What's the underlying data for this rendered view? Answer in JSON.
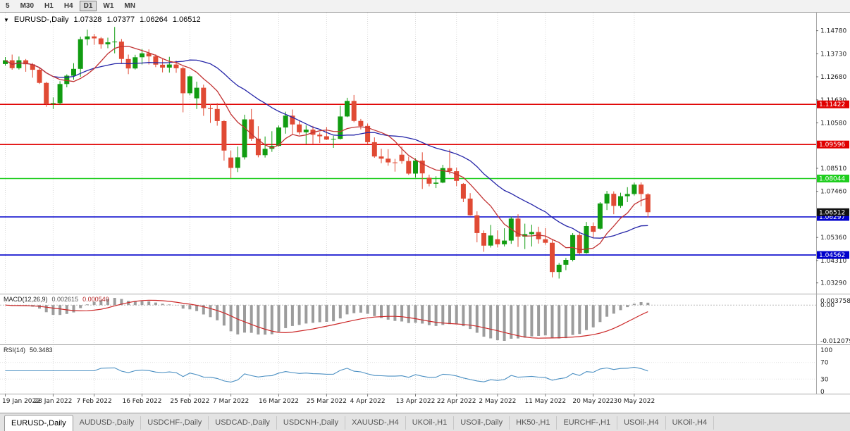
{
  "colors": {
    "up": "#119c11",
    "down": "#e04a34",
    "ma_fast": "#c23333",
    "ma_slow": "#2525a8",
    "macd_hist": "#9c9c9c",
    "macd_signal": "#cc2929",
    "rsi_line": "#4a8fc2",
    "level_red": "#e00000",
    "level_green": "#1fce1f",
    "level_blue": "#0000cc",
    "price_label_bg": "#111111",
    "grid": "#d9d9d9"
  },
  "toolbar": {
    "timeframes": [
      {
        "label": "5",
        "active": false
      },
      {
        "label": "M30",
        "active": false
      },
      {
        "label": "H1",
        "active": false
      },
      {
        "label": "H4",
        "active": false
      },
      {
        "label": "D1",
        "active": true
      },
      {
        "label": "W1",
        "active": false
      },
      {
        "label": "MN",
        "active": false
      }
    ]
  },
  "chart": {
    "dropdown_glyph": "▼",
    "symbol_label": "EURUSD-,Daily",
    "open": "1.07328",
    "high": "1.07377",
    "low": "1.06264",
    "close": "1.06512"
  },
  "price_axis": {
    "labels": [
      "1.14780",
      "1.13730",
      "1.12680",
      "1.11630",
      "1.10580",
      "1.08510",
      "1.07460",
      "1.05360",
      "1.04310",
      "1.03290"
    ]
  },
  "levels": [
    {
      "price": 1.11422,
      "label": "1.11422",
      "type": "red"
    },
    {
      "price": 1.09596,
      "label": "1.09596",
      "type": "red"
    },
    {
      "price": 1.08044,
      "label": "1.08044",
      "type": "green"
    },
    {
      "price": 1.06297,
      "label": "1.06297",
      "type": "blue"
    },
    {
      "price": 1.04562,
      "label": "1.04562",
      "type": "blue"
    }
  ],
  "current_price": {
    "price": 1.06512,
    "label": "1.06512"
  },
  "macd_panel": {
    "name": "MACD(12,26,9)",
    "value_main": "0.002615",
    "value_signal": "0.000540",
    "axis_top": "0.0037584",
    "axis_zero": "0.00",
    "axis_bottom": "-0.0120796"
  },
  "rsi_panel": {
    "name": "RSI(14)",
    "value": "50.3483",
    "axis": [
      "100",
      "70",
      "30",
      "0"
    ]
  },
  "x_ticks": [
    "19 Jan 2022",
    "28 Jan 2022",
    "7 Feb 2022",
    "16 Feb 2022",
    "25 Feb 2022",
    "7 Mar 2022",
    "16 Mar 2022",
    "25 Mar 2022",
    "4 Apr 2022",
    "13 Apr 2022",
    "22 Apr 2022",
    "2 May 2022",
    "11 May 2022",
    "20 May 2022",
    "30 May 2022"
  ],
  "tabs": [
    {
      "label": "EURUSD-,Daily",
      "active": true
    },
    {
      "label": "AUDUSD-,Daily",
      "active": false
    },
    {
      "label": "USDCHF-,Daily",
      "active": false
    },
    {
      "label": "USDCAD-,Daily",
      "active": false
    },
    {
      "label": "USDCNH-,Daily",
      "active": false
    },
    {
      "label": "XAUUSD-,H4",
      "active": false
    },
    {
      "label": "UKOil-,H1",
      "active": false
    },
    {
      "label": "USOil-,Daily",
      "active": false
    },
    {
      "label": "HK50-,H1",
      "active": false
    },
    {
      "label": "EURCHF-,H1",
      "active": false
    },
    {
      "label": "USOil-,H4",
      "active": false
    },
    {
      "label": "UKOil-,H4",
      "active": false
    }
  ],
  "chart_data": {
    "type": "candlestick",
    "title": "EURUSD-,Daily",
    "symbol": "EURUSD",
    "timeframe": "Daily",
    "ylim": [
      1.028,
      1.156
    ],
    "overlays": [
      {
        "name": "ma-fast",
        "period": 8
      },
      {
        "name": "ma-slow",
        "period": 20
      }
    ],
    "indicators": [
      "MACD(12,26,9)",
      "RSI(14)"
    ],
    "dates": [
      "19 Jan 2022",
      "20 Jan 2022",
      "21 Jan 2022",
      "24 Jan 2022",
      "25 Jan 2022",
      "26 Jan 2022",
      "27 Jan 2022",
      "28 Jan 2022",
      "31 Jan 2022",
      "1 Feb 2022",
      "2 Feb 2022",
      "3 Feb 2022",
      "4 Feb 2022",
      "7 Feb 2022",
      "8 Feb 2022",
      "9 Feb 2022",
      "10 Feb 2022",
      "11 Feb 2022",
      "14 Feb 2022",
      "15 Feb 2022",
      "16 Feb 2022",
      "17 Feb 2022",
      "18 Feb 2022",
      "21 Feb 2022",
      "22 Feb 2022",
      "23 Feb 2022",
      "24 Feb 2022",
      "25 Feb 2022",
      "28 Feb 2022",
      "1 Mar 2022",
      "2 Mar 2022",
      "3 Mar 2022",
      "4 Mar 2022",
      "7 Mar 2022",
      "8 Mar 2022",
      "9 Mar 2022",
      "10 Mar 2022",
      "11 Mar 2022",
      "14 Mar 2022",
      "15 Mar 2022",
      "16 Mar 2022",
      "17 Mar 2022",
      "18 Mar 2022",
      "21 Mar 2022",
      "22 Mar 2022",
      "23 Mar 2022",
      "24 Mar 2022",
      "25 Mar 2022",
      "28 Mar 2022",
      "29 Mar 2022",
      "30 Mar 2022",
      "31 Mar 2022",
      "1 Apr 2022",
      "4 Apr 2022",
      "5 Apr 2022",
      "6 Apr 2022",
      "7 Apr 2022",
      "8 Apr 2022",
      "11 Apr 2022",
      "12 Apr 2022",
      "13 Apr 2022",
      "14 Apr 2022",
      "18 Apr 2022",
      "19 Apr 2022",
      "20 Apr 2022",
      "21 Apr 2022",
      "22 Apr 2022",
      "25 Apr 2022",
      "26 Apr 2022",
      "27 Apr 2022",
      "28 Apr 2022",
      "29 Apr 2022",
      "2 May 2022",
      "3 May 2022",
      "4 May 2022",
      "5 May 2022",
      "6 May 2022",
      "9 May 2022",
      "10 May 2022",
      "11 May 2022",
      "12 May 2022",
      "13 May 2022",
      "16 May 2022",
      "17 May 2022",
      "18 May 2022",
      "19 May 2022",
      "20 May 2022",
      "23 May 2022",
      "24 May 2022",
      "25 May 2022",
      "26 May 2022",
      "27 May 2022",
      "30 May 2022",
      "31 May 2022",
      "1 Jun 2022"
    ],
    "ohlc": [
      [
        1.1326,
        1.1358,
        1.1319,
        1.1343
      ],
      [
        1.1343,
        1.1369,
        1.13,
        1.1307
      ],
      [
        1.1307,
        1.136,
        1.1301,
        1.1343
      ],
      [
        1.1343,
        1.1349,
        1.1291,
        1.1325
      ],
      [
        1.1325,
        1.1331,
        1.1264,
        1.13
      ],
      [
        1.13,
        1.131,
        1.1235,
        1.124
      ],
      [
        1.124,
        1.1245,
        1.1131,
        1.1145
      ],
      [
        1.1145,
        1.1174,
        1.1121,
        1.1148
      ],
      [
        1.1148,
        1.1248,
        1.114,
        1.1235
      ],
      [
        1.1235,
        1.1279,
        1.122,
        1.1273
      ],
      [
        1.1273,
        1.133,
        1.1255,
        1.1304
      ],
      [
        1.1304,
        1.1451,
        1.1268,
        1.1439
      ],
      [
        1.1439,
        1.1483,
        1.1411,
        1.1452
      ],
      [
        1.1452,
        1.1463,
        1.1414,
        1.1443
      ],
      [
        1.1443,
        1.1449,
        1.1396,
        1.1416
      ],
      [
        1.1416,
        1.1446,
        1.1398,
        1.1425
      ],
      [
        1.1425,
        1.1495,
        1.1375,
        1.1428
      ],
      [
        1.1428,
        1.144,
        1.133,
        1.1349
      ],
      [
        1.1349,
        1.1369,
        1.128,
        1.1306
      ],
      [
        1.1306,
        1.1368,
        1.1301,
        1.1357
      ],
      [
        1.1357,
        1.1395,
        1.1324,
        1.1375
      ],
      [
        1.1375,
        1.1393,
        1.1324,
        1.1361
      ],
      [
        1.1361,
        1.137,
        1.1312,
        1.1323
      ],
      [
        1.1323,
        1.1349,
        1.1288,
        1.131
      ],
      [
        1.131,
        1.1359,
        1.1287,
        1.1324
      ],
      [
        1.1324,
        1.1342,
        1.1286,
        1.1307
      ],
      [
        1.1307,
        1.1315,
        1.1106,
        1.1193
      ],
      [
        1.1193,
        1.1274,
        1.1184,
        1.127
      ],
      [
        1.117,
        1.1246,
        1.1121,
        1.1218
      ],
      [
        1.1218,
        1.1232,
        1.109,
        1.1125
      ],
      [
        1.1125,
        1.1145,
        1.1058,
        1.1121
      ],
      [
        1.1121,
        1.1148,
        1.1045,
        1.1066
      ],
      [
        1.1066,
        1.107,
        1.0886,
        1.0932
      ],
      [
        1.09,
        1.0932,
        1.0806,
        1.0853
      ],
      [
        1.0853,
        1.095,
        1.0834,
        1.0901
      ],
      [
        1.0901,
        1.1095,
        1.0891,
        1.1074
      ],
      [
        1.1074,
        1.1121,
        1.0976,
        1.0986
      ],
      [
        1.0986,
        1.1043,
        1.0901,
        1.0911
      ],
      [
        1.0911,
        1.0996,
        1.09,
        1.094
      ],
      [
        1.094,
        1.102,
        1.0926,
        1.0953
      ],
      [
        1.0953,
        1.1046,
        1.095,
        1.1037
      ],
      [
        1.1037,
        1.1109,
        1.1009,
        1.1091
      ],
      [
        1.1091,
        1.1119,
        1.1003,
        1.1051
      ],
      [
        1.1051,
        1.1069,
        1.1005,
        1.1015
      ],
      [
        1.1015,
        1.1047,
        1.0962,
        1.1027
      ],
      [
        1.1027,
        1.1044,
        1.0963,
        1.1004
      ],
      [
        1.1004,
        1.1014,
        1.0966,
        1.0997
      ],
      [
        1.0997,
        1.1039,
        1.098,
        1.0982
      ],
      [
        1.0982,
        1.0999,
        1.0944,
        1.0985
      ],
      [
        1.0985,
        1.1137,
        1.0982,
        1.1087
      ],
      [
        1.1087,
        1.1172,
        1.1084,
        1.1158
      ],
      [
        1.1158,
        1.1185,
        1.1061,
        1.1067
      ],
      [
        1.1067,
        1.1076,
        1.1028,
        1.1044
      ],
      [
        1.1044,
        1.1055,
        1.096,
        1.097
      ],
      [
        1.097,
        1.0992,
        1.0899,
        1.0905
      ],
      [
        1.0905,
        1.094,
        1.0874,
        1.0895
      ],
      [
        1.0895,
        1.0938,
        1.0863,
        1.0878
      ],
      [
        1.0878,
        1.0894,
        1.0836,
        1.0876
      ],
      [
        1.0913,
        1.095,
        1.0872,
        1.0884
      ],
      [
        1.0884,
        1.0904,
        1.0821,
        1.0827
      ],
      [
        1.0827,
        1.0897,
        1.0809,
        1.0886
      ],
      [
        1.0886,
        1.0924,
        1.0757,
        1.0828
      ],
      [
        1.0808,
        1.0822,
        1.0769,
        1.0781
      ],
      [
        1.0781,
        1.0815,
        1.0761,
        1.0786
      ],
      [
        1.0786,
        1.0867,
        1.0783,
        1.0852
      ],
      [
        1.0852,
        1.0937,
        1.0824,
        1.0838
      ],
      [
        1.0838,
        1.0854,
        1.077,
        1.0794
      ],
      [
        1.078,
        1.0784,
        1.0697,
        1.0713
      ],
      [
        1.0713,
        1.0738,
        1.0635,
        1.0637
      ],
      [
        1.0637,
        1.0655,
        1.0514,
        1.0556
      ],
      [
        1.0556,
        1.0568,
        1.0471,
        1.0499
      ],
      [
        1.0499,
        1.0593,
        1.049,
        1.0545
      ],
      [
        1.0528,
        1.0568,
        1.0491,
        1.0505
      ],
      [
        1.0505,
        1.0578,
        1.0495,
        1.0522
      ],
      [
        1.0522,
        1.0631,
        1.0507,
        1.0622
      ],
      [
        1.0622,
        1.0642,
        1.0493,
        1.054
      ],
      [
        1.054,
        1.0599,
        1.0483,
        1.0551
      ],
      [
        1.0551,
        1.0594,
        1.0495,
        1.0561
      ],
      [
        1.0561,
        1.0585,
        1.0508,
        1.0528
      ],
      [
        1.0528,
        1.0579,
        1.0503,
        1.0512
      ],
      [
        1.0512,
        1.0525,
        1.0354,
        1.0379
      ],
      [
        1.0379,
        1.042,
        1.0349,
        1.0412
      ],
      [
        1.0412,
        1.0443,
        1.0387,
        1.0434
      ],
      [
        1.0434,
        1.0556,
        1.0427,
        1.0547
      ],
      [
        1.0547,
        1.0563,
        1.0459,
        1.0465
      ],
      [
        1.0465,
        1.0607,
        1.0462,
        1.0588
      ],
      [
        1.0588,
        1.0604,
        1.0533,
        1.0562
      ],
      [
        1.0576,
        1.0697,
        1.0572,
        1.0691
      ],
      [
        1.0691,
        1.0748,
        1.0661,
        1.0735
      ],
      [
        1.0735,
        1.0746,
        1.0642,
        1.068
      ],
      [
        1.068,
        1.074,
        1.0671,
        1.0724
      ],
      [
        1.0724,
        1.0765,
        1.0697,
        1.0734
      ],
      [
        1.0734,
        1.0786,
        1.0727,
        1.0777
      ],
      [
        1.0777,
        1.0787,
        1.0678,
        1.0734
      ],
      [
        1.07328,
        1.07377,
        1.06264,
        1.06512
      ]
    ]
  }
}
